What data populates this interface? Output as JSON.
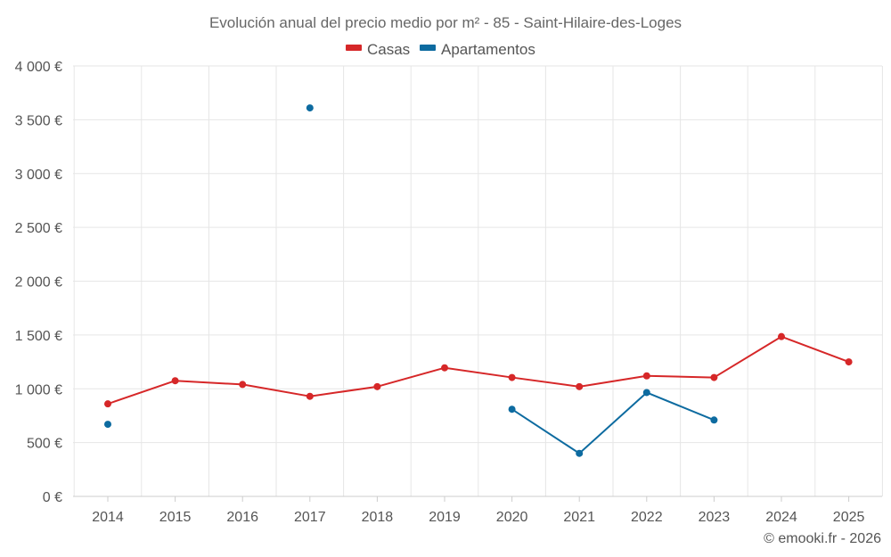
{
  "chart_data": {
    "type": "line",
    "title": "Evolución anual del precio medio por m² - 85 - Saint-Hilaire-des-Loges",
    "xlabel": "",
    "ylabel": "",
    "categories": [
      "2014",
      "2015",
      "2016",
      "2017",
      "2018",
      "2019",
      "2020",
      "2021",
      "2022",
      "2023",
      "2024",
      "2025"
    ],
    "ylim": [
      0,
      4000
    ],
    "yticks": [
      0,
      500,
      1000,
      1500,
      2000,
      2500,
      3000,
      3500,
      4000
    ],
    "ytick_labels": [
      "0 €",
      "500 €",
      "1 000 €",
      "1 500 €",
      "2 000 €",
      "2 500 €",
      "3 000 €",
      "3 500 €",
      "4 000 €"
    ],
    "grid": true,
    "legend_position": "top-center",
    "series": [
      {
        "name": "Casas",
        "color": "#d62728",
        "values": [
          860,
          1075,
          1040,
          930,
          1020,
          1195,
          1105,
          1020,
          1120,
          1105,
          1485,
          1250
        ]
      },
      {
        "name": "Apartamentos",
        "color": "#0d6ba0",
        "values": [
          670,
          null,
          null,
          3610,
          null,
          null,
          810,
          400,
          965,
          710,
          null,
          null
        ]
      }
    ]
  },
  "credit": "© emooki.fr - 2026"
}
